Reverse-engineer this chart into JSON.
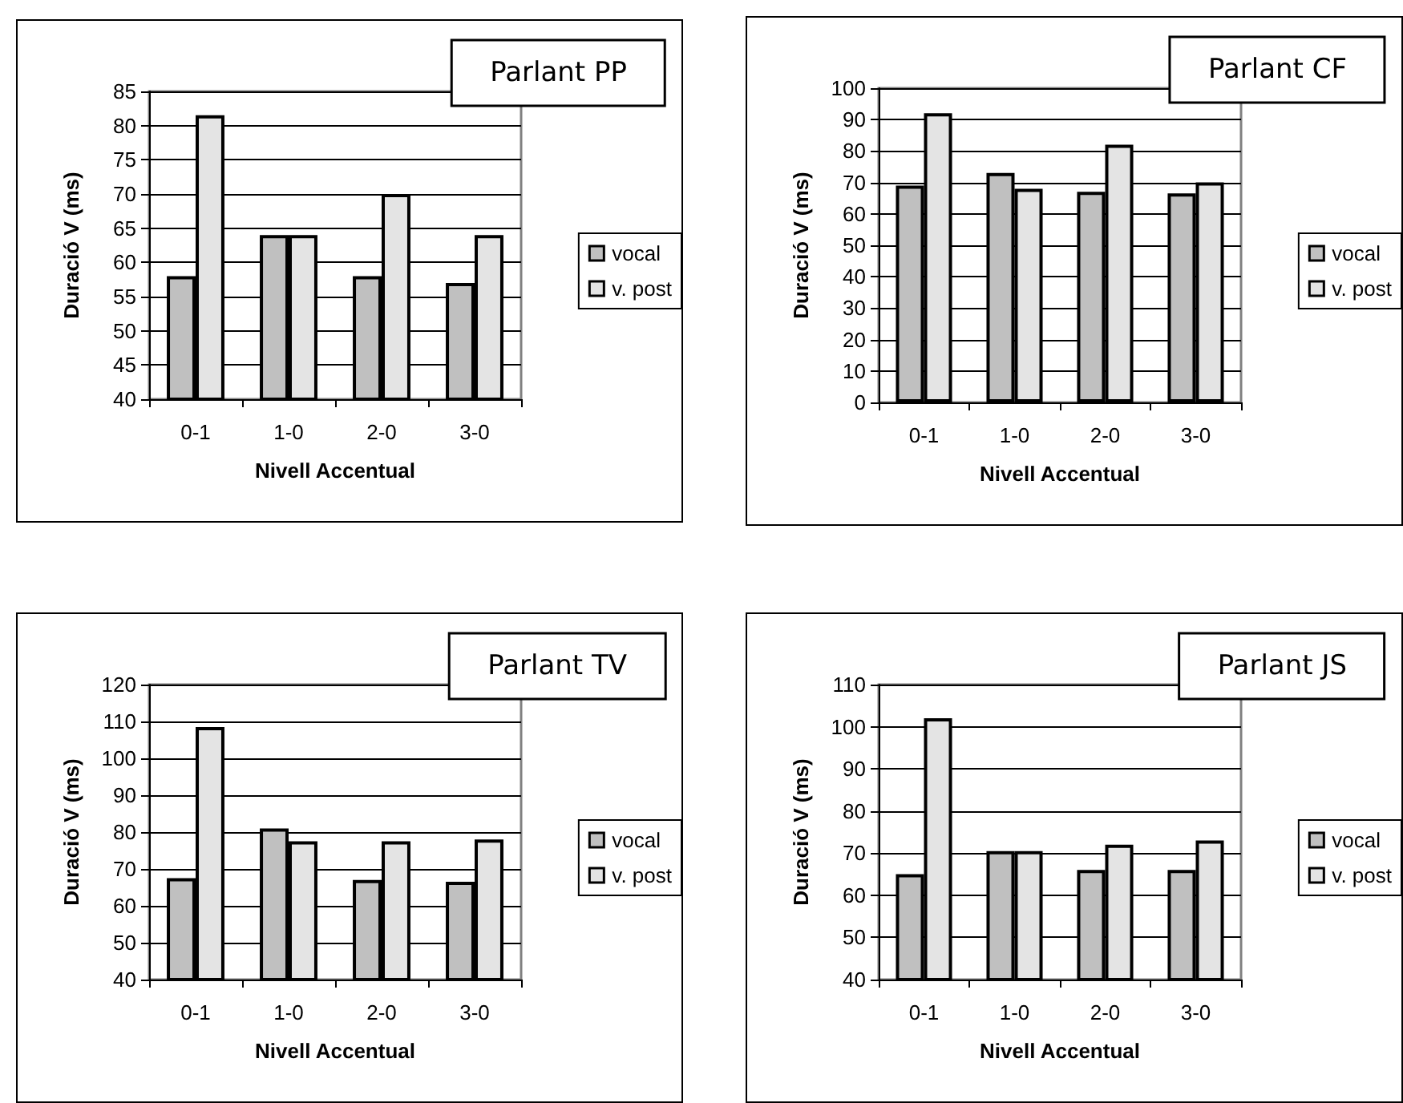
{
  "chart_data": [
    {
      "type": "bar",
      "title": "Parlant PP",
      "xlabel": "Nivell Accentual",
      "ylabel": "Duració V (ms)",
      "categories": [
        "0-1",
        "1-0",
        "2-0",
        "3-0"
      ],
      "series": [
        {
          "name": "vocal",
          "color": "#c0c0c0",
          "values": [
            58,
            64,
            58,
            57
          ]
        },
        {
          "name": "v. post",
          "color": "#e4e4e4",
          "values": [
            81.5,
            64,
            70,
            64
          ]
        }
      ],
      "ylim": [
        40,
        85
      ],
      "yticks": [
        40,
        45,
        50,
        55,
        60,
        65,
        70,
        75,
        80,
        85
      ],
      "grid": "y",
      "legend": "right"
    },
    {
      "type": "bar",
      "title": "Parlant CF",
      "xlabel": "Nivell Accentual",
      "ylabel": "Duració V (ms)",
      "categories": [
        "0-1",
        "1-0",
        "2-0",
        "3-0"
      ],
      "series": [
        {
          "name": "vocal",
          "color": "#c0c0c0",
          "values": [
            69,
            73,
            67,
            66.5
          ]
        },
        {
          "name": "v. post",
          "color": "#e4e4e4",
          "values": [
            92,
            68,
            82,
            70
          ]
        }
      ],
      "ylim": [
        0,
        100
      ],
      "yticks": [
        0,
        10,
        20,
        30,
        40,
        50,
        60,
        70,
        80,
        90,
        100
      ],
      "grid": "y",
      "legend": "right"
    },
    {
      "type": "bar",
      "title": "Parlant TV",
      "xlabel": "Nivell Accentual",
      "ylabel": "Duració V (ms)",
      "categories": [
        "0-1",
        "1-0",
        "2-0",
        "3-0"
      ],
      "series": [
        {
          "name": "vocal",
          "color": "#c0c0c0",
          "values": [
            67.5,
            81,
            67,
            66.5
          ]
        },
        {
          "name": "v. post",
          "color": "#e4e4e4",
          "values": [
            108.5,
            77.5,
            77.5,
            78
          ]
        }
      ],
      "ylim": [
        40,
        120
      ],
      "yticks": [
        40,
        50,
        60,
        70,
        80,
        90,
        100,
        110,
        120
      ],
      "grid": "y",
      "legend": "right"
    },
    {
      "type": "bar",
      "title": "Parlant JS",
      "xlabel": "Nivell Accentual",
      "ylabel": "Duració V (ms)",
      "categories": [
        "0-1",
        "1-0",
        "2-0",
        "3-0"
      ],
      "series": [
        {
          "name": "vocal",
          "color": "#c0c0c0",
          "values": [
            65,
            70.5,
            66,
            66
          ]
        },
        {
          "name": "v. post",
          "color": "#e4e4e4",
          "values": [
            102,
            70.5,
            72,
            73
          ]
        }
      ],
      "ylim": [
        40,
        110
      ],
      "yticks": [
        40,
        50,
        60,
        70,
        80,
        90,
        100,
        110
      ],
      "grid": "y",
      "legend": "right"
    }
  ]
}
